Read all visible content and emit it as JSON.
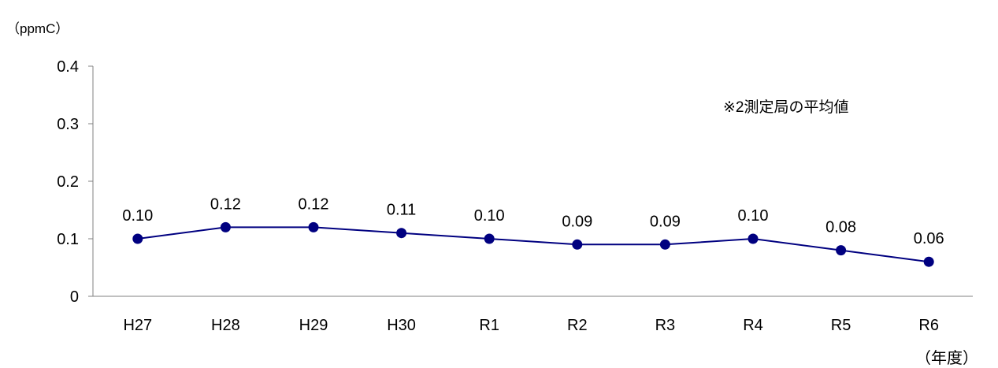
{
  "chart_data": {
    "type": "line",
    "ylabel": "（ppmC）",
    "xlabel": "（年度）",
    "annotation": "※2測定局の平均値",
    "categories": [
      "H27",
      "H28",
      "H29",
      "H30",
      "R1",
      "R2",
      "R3",
      "R4",
      "R5",
      "R6"
    ],
    "series": [
      {
        "values": [
          0.1,
          0.12,
          0.12,
          0.11,
          0.1,
          0.09,
          0.09,
          0.1,
          0.08,
          0.06
        ],
        "labels": [
          "0.10",
          "0.12",
          "0.12",
          "0.11",
          "0.10",
          "0.09",
          "0.09",
          "0.10",
          "0.08",
          "0.06"
        ],
        "color": "#000080"
      }
    ],
    "ylim": [
      0,
      0.4
    ],
    "yticks": [
      0,
      0.1,
      0.2,
      0.3,
      0.4
    ],
    "ytick_labels": [
      "0",
      "0.1",
      "0.2",
      "0.3",
      "0.4"
    ],
    "grid": false,
    "legend": "none"
  }
}
